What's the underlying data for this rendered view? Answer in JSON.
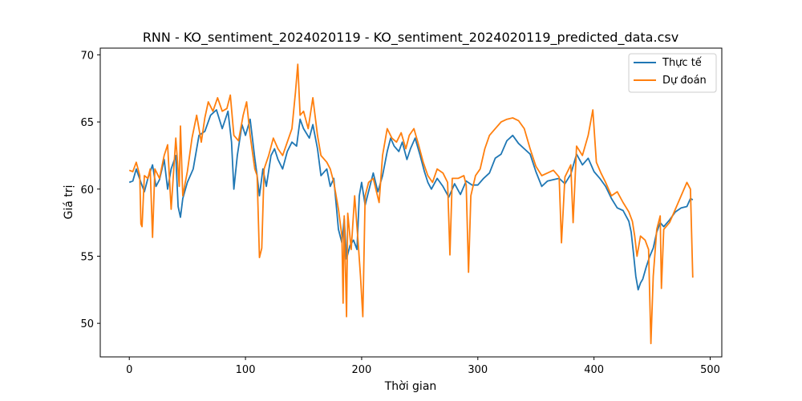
{
  "chart_data": {
    "type": "line",
    "title": "RNN - KO_sentiment_2024020119 - KO_sentiment_2024020119_predicted_data.csv",
    "xlabel": "Thời gian",
    "ylabel": "Giá trị",
    "xlim": [
      -25,
      510
    ],
    "ylim": [
      47.5,
      70.5
    ],
    "xticks": [
      0,
      100,
      200,
      300,
      400,
      500
    ],
    "yticks": [
      50,
      55,
      60,
      65,
      70
    ],
    "grid": false,
    "legend_position": "top-right",
    "series": [
      {
        "name": "Thực tế",
        "color": "#1f77b4",
        "points": [
          [
            0,
            60.5
          ],
          [
            3,
            60.6
          ],
          [
            6,
            61.5
          ],
          [
            10,
            60.5
          ],
          [
            13,
            59.8
          ],
          [
            16,
            60.8
          ],
          [
            20,
            61.8
          ],
          [
            23,
            60.2
          ],
          [
            26,
            60.7
          ],
          [
            30,
            62.2
          ],
          [
            33,
            60.0
          ],
          [
            36,
            61.5
          ],
          [
            40,
            62.5
          ],
          [
            42,
            58.7
          ],
          [
            44,
            57.9
          ],
          [
            46,
            59.3
          ],
          [
            50,
            60.5
          ],
          [
            55,
            61.5
          ],
          [
            60,
            64.0
          ],
          [
            65,
            64.3
          ],
          [
            70,
            65.5
          ],
          [
            75,
            65.9
          ],
          [
            80,
            64.5
          ],
          [
            85,
            65.8
          ],
          [
            88,
            63.5
          ],
          [
            90,
            60.0
          ],
          [
            93,
            62.5
          ],
          [
            97,
            64.8
          ],
          [
            100,
            64.0
          ],
          [
            104,
            65.2
          ],
          [
            108,
            62.3
          ],
          [
            110,
            61.0
          ],
          [
            112,
            59.5
          ],
          [
            115,
            61.5
          ],
          [
            118,
            60.2
          ],
          [
            122,
            62.5
          ],
          [
            125,
            63.0
          ],
          [
            128,
            62.2
          ],
          [
            132,
            61.5
          ],
          [
            136,
            62.8
          ],
          [
            140,
            63.5
          ],
          [
            144,
            63.2
          ],
          [
            147,
            65.2
          ],
          [
            150,
            64.5
          ],
          [
            155,
            63.8
          ],
          [
            158,
            64.8
          ],
          [
            162,
            63.0
          ],
          [
            165,
            61.0
          ],
          [
            170,
            61.5
          ],
          [
            173,
            60.2
          ],
          [
            176,
            60.8
          ],
          [
            180,
            57.0
          ],
          [
            183,
            56.0
          ],
          [
            185,
            57.8
          ],
          [
            187,
            54.8
          ],
          [
            190,
            55.8
          ],
          [
            193,
            56.2
          ],
          [
            196,
            55.5
          ],
          [
            198,
            59.5
          ],
          [
            200,
            60.5
          ],
          [
            203,
            58.8
          ],
          [
            205,
            59.5
          ],
          [
            210,
            61.2
          ],
          [
            214,
            59.8
          ],
          [
            218,
            61.0
          ],
          [
            222,
            62.8
          ],
          [
            225,
            63.8
          ],
          [
            228,
            63.2
          ],
          [
            232,
            62.8
          ],
          [
            235,
            63.5
          ],
          [
            239,
            62.2
          ],
          [
            242,
            63.0
          ],
          [
            246,
            63.8
          ],
          [
            250,
            62.6
          ],
          [
            254,
            61.3
          ],
          [
            257,
            60.5
          ],
          [
            260,
            60.0
          ],
          [
            265,
            60.8
          ],
          [
            270,
            60.2
          ],
          [
            275,
            59.4
          ],
          [
            280,
            60.4
          ],
          [
            285,
            59.6
          ],
          [
            290,
            60.6
          ],
          [
            295,
            60.3
          ],
          [
            300,
            60.3
          ],
          [
            305,
            60.8
          ],
          [
            310,
            61.2
          ],
          [
            315,
            62.3
          ],
          [
            320,
            62.6
          ],
          [
            325,
            63.6
          ],
          [
            330,
            64.0
          ],
          [
            335,
            63.4
          ],
          [
            340,
            63.0
          ],
          [
            345,
            62.6
          ],
          [
            350,
            61.3
          ],
          [
            355,
            60.2
          ],
          [
            360,
            60.6
          ],
          [
            365,
            60.7
          ],
          [
            370,
            60.8
          ],
          [
            375,
            60.4
          ],
          [
            380,
            61.1
          ],
          [
            385,
            62.6
          ],
          [
            390,
            61.8
          ],
          [
            395,
            62.3
          ],
          [
            400,
            61.3
          ],
          [
            405,
            60.8
          ],
          [
            410,
            60.2
          ],
          [
            415,
            59.3
          ],
          [
            420,
            58.6
          ],
          [
            425,
            58.4
          ],
          [
            430,
            57.6
          ],
          [
            432,
            56.8
          ],
          [
            434,
            55.2
          ],
          [
            436,
            53.5
          ],
          [
            438,
            52.5
          ],
          [
            440,
            53.0
          ],
          [
            442,
            53.3
          ],
          [
            445,
            54.2
          ],
          [
            448,
            55.0
          ],
          [
            451,
            55.6
          ],
          [
            454,
            56.8
          ],
          [
            457,
            57.5
          ],
          [
            460,
            57.2
          ],
          [
            465,
            57.7
          ],
          [
            470,
            58.3
          ],
          [
            475,
            58.6
          ],
          [
            480,
            58.7
          ],
          [
            483,
            59.3
          ],
          [
            485,
            59.2
          ]
        ]
      },
      {
        "name": "Dự đoán",
        "color": "#ff7f0e",
        "points": [
          [
            0,
            61.4
          ],
          [
            3,
            61.3
          ],
          [
            6,
            62.0
          ],
          [
            9,
            61.0
          ],
          [
            10,
            57.4
          ],
          [
            11,
            57.2
          ],
          [
            13,
            61.0
          ],
          [
            16,
            60.8
          ],
          [
            18,
            61.5
          ],
          [
            20,
            56.4
          ],
          [
            22,
            61.5
          ],
          [
            26,
            60.8
          ],
          [
            30,
            62.5
          ],
          [
            33,
            63.3
          ],
          [
            36,
            58.5
          ],
          [
            40,
            63.8
          ],
          [
            43,
            60.2
          ],
          [
            44,
            64.7
          ],
          [
            46,
            59.5
          ],
          [
            50,
            61.3
          ],
          [
            54,
            63.8
          ],
          [
            58,
            65.5
          ],
          [
            62,
            63.5
          ],
          [
            65,
            65.3
          ],
          [
            68,
            66.5
          ],
          [
            72,
            65.8
          ],
          [
            76,
            66.8
          ],
          [
            80,
            65.8
          ],
          [
            84,
            66.0
          ],
          [
            87,
            67.0
          ],
          [
            90,
            64.0
          ],
          [
            94,
            63.6
          ],
          [
            98,
            65.5
          ],
          [
            101,
            66.5
          ],
          [
            104,
            64.0
          ],
          [
            108,
            61.5
          ],
          [
            110,
            61.0
          ],
          [
            112,
            54.9
          ],
          [
            114,
            55.6
          ],
          [
            116,
            61.5
          ],
          [
            120,
            62.5
          ],
          [
            124,
            63.8
          ],
          [
            128,
            63.0
          ],
          [
            132,
            62.5
          ],
          [
            136,
            63.5
          ],
          [
            140,
            64.5
          ],
          [
            143,
            67.2
          ],
          [
            145,
            69.3
          ],
          [
            147,
            65.5
          ],
          [
            150,
            65.8
          ],
          [
            154,
            64.5
          ],
          [
            158,
            66.8
          ],
          [
            162,
            64.0
          ],
          [
            165,
            62.5
          ],
          [
            170,
            62.0
          ],
          [
            173,
            61.5
          ],
          [
            176,
            60.5
          ],
          [
            180,
            58.5
          ],
          [
            183,
            56.5
          ],
          [
            184,
            51.5
          ],
          [
            185,
            58.0
          ],
          [
            187,
            50.5
          ],
          [
            188,
            58.2
          ],
          [
            191,
            55.5
          ],
          [
            194,
            59.5
          ],
          [
            197,
            56.0
          ],
          [
            199,
            53.5
          ],
          [
            201,
            50.5
          ],
          [
            203,
            59.5
          ],
          [
            206,
            60.5
          ],
          [
            210,
            60.8
          ],
          [
            215,
            59.0
          ],
          [
            218,
            62.5
          ],
          [
            222,
            64.5
          ],
          [
            226,
            63.8
          ],
          [
            230,
            63.5
          ],
          [
            234,
            64.2
          ],
          [
            238,
            63.0
          ],
          [
            241,
            64.0
          ],
          [
            245,
            64.5
          ],
          [
            249,
            63.3
          ],
          [
            253,
            62.0
          ],
          [
            257,
            61.0
          ],
          [
            261,
            60.5
          ],
          [
            265,
            61.5
          ],
          [
            270,
            61.2
          ],
          [
            274,
            60.5
          ],
          [
            276,
            55.1
          ],
          [
            278,
            60.8
          ],
          [
            283,
            60.8
          ],
          [
            288,
            61.0
          ],
          [
            290,
            60.3
          ],
          [
            292,
            53.8
          ],
          [
            294,
            59.5
          ],
          [
            298,
            61.0
          ],
          [
            302,
            61.5
          ],
          [
            306,
            63.0
          ],
          [
            310,
            64.0
          ],
          [
            315,
            64.5
          ],
          [
            320,
            65.0
          ],
          [
            325,
            65.2
          ],
          [
            330,
            65.3
          ],
          [
            335,
            65.1
          ],
          [
            340,
            64.5
          ],
          [
            345,
            63.0
          ],
          [
            350,
            61.7
          ],
          [
            355,
            61.0
          ],
          [
            360,
            61.2
          ],
          [
            365,
            61.4
          ],
          [
            370,
            60.9
          ],
          [
            372,
            56.0
          ],
          [
            375,
            60.9
          ],
          [
            380,
            61.8
          ],
          [
            382,
            57.5
          ],
          [
            385,
            63.2
          ],
          [
            390,
            62.5
          ],
          [
            395,
            64.0
          ],
          [
            399,
            65.9
          ],
          [
            402,
            62.0
          ],
          [
            406,
            61.2
          ],
          [
            410,
            60.5
          ],
          [
            415,
            59.5
          ],
          [
            420,
            59.8
          ],
          [
            425,
            59.0
          ],
          [
            430,
            58.3
          ],
          [
            433,
            57.6
          ],
          [
            435,
            56.5
          ],
          [
            437,
            55.0
          ],
          [
            440,
            56.5
          ],
          [
            444,
            56.2
          ],
          [
            447,
            55.5
          ],
          [
            449,
            48.5
          ],
          [
            451,
            53.5
          ],
          [
            454,
            57.0
          ],
          [
            457,
            58.0
          ],
          [
            458,
            52.6
          ],
          [
            460,
            57.0
          ],
          [
            465,
            57.5
          ],
          [
            470,
            58.5
          ],
          [
            475,
            59.5
          ],
          [
            480,
            60.5
          ],
          [
            483,
            60.0
          ],
          [
            485,
            53.4
          ]
        ]
      }
    ]
  }
}
